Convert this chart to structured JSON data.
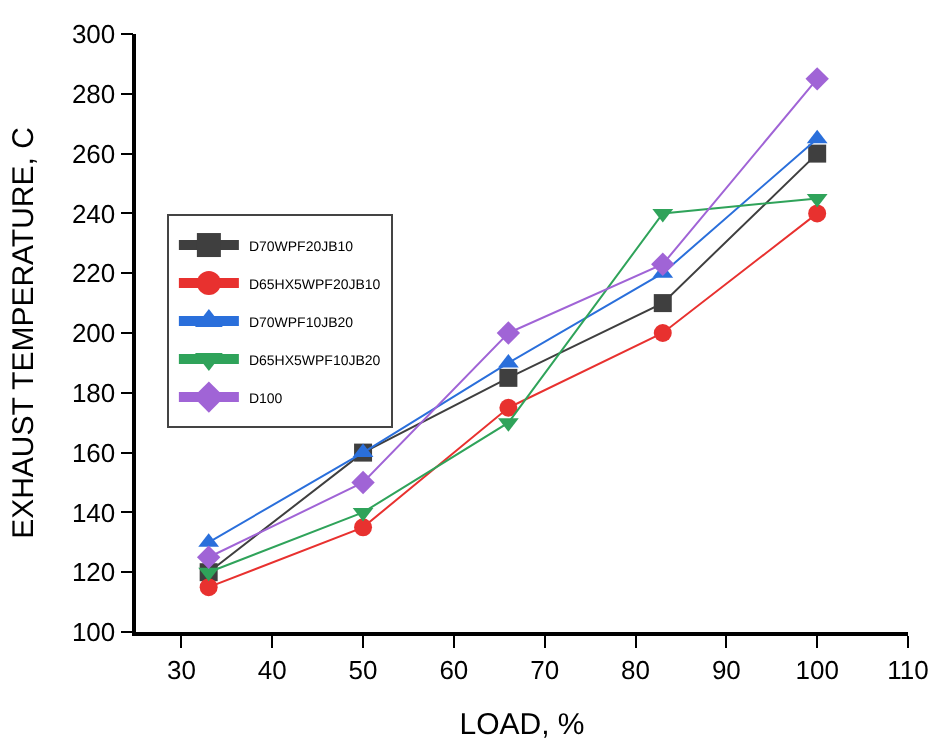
{
  "chart_data": {
    "type": "line",
    "xlabel": "LOAD, %",
    "ylabel": "EXHAUST TEMPERATURE, C",
    "x": [
      33,
      50,
      66,
      83,
      100
    ],
    "xlim": [
      25,
      110
    ],
    "xticks": [
      30,
      40,
      50,
      60,
      70,
      80,
      90,
      100,
      110
    ],
    "ylim": [
      100,
      300
    ],
    "yticks": [
      100,
      120,
      140,
      160,
      180,
      200,
      220,
      240,
      260,
      280,
      300
    ],
    "legend": "left",
    "series": [
      {
        "name": "D70WPF20JB10",
        "color": "#3f3f3f",
        "marker": "square",
        "values": [
          120,
          160,
          185,
          210,
          260
        ]
      },
      {
        "name": "D65HX5WPF20JB10",
        "color": "#e8312f",
        "marker": "circle",
        "values": [
          115,
          135,
          175,
          200,
          240
        ]
      },
      {
        "name": "D70WPF10JB20",
        "color": "#2a6fdb",
        "marker": "triangle",
        "values": [
          130,
          160,
          190,
          220,
          265
        ]
      },
      {
        "name": "D65HX5WPF10JB20",
        "color": "#2fa35a",
        "marker": "triangle-down",
        "values": [
          120,
          140,
          170,
          240,
          245
        ]
      },
      {
        "name": "D100",
        "color": "#a064d6",
        "marker": "diamond",
        "values": [
          125,
          150,
          200,
          223,
          285
        ]
      }
    ]
  }
}
